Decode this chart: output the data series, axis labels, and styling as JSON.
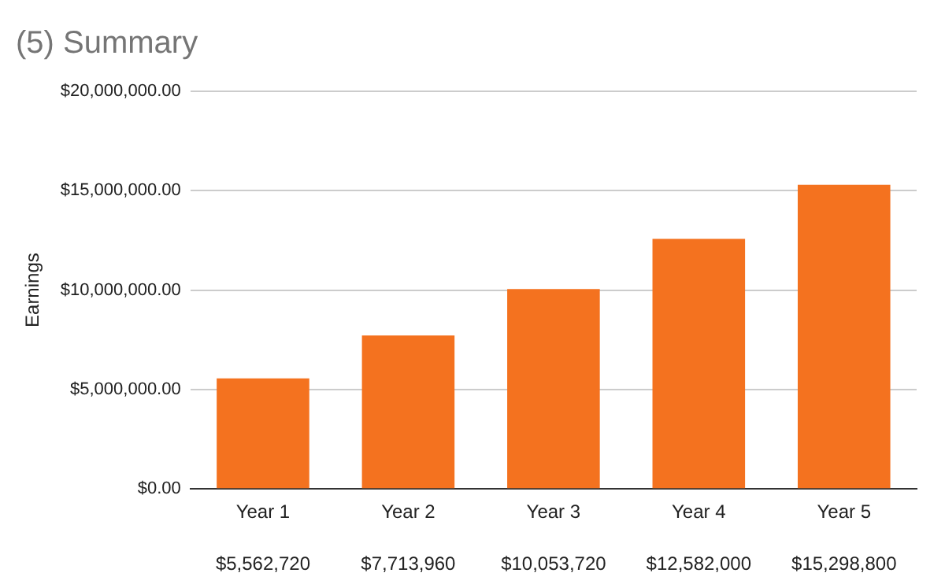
{
  "chart_data": {
    "type": "bar",
    "title": "(5) Summary",
    "ylabel": "Earnings",
    "categories": [
      "Year 1",
      "Year 2",
      "Year 3",
      "Year 4",
      "Year 5"
    ],
    "values": [
      5562720,
      7713960,
      10053720,
      12582000,
      15298800
    ],
    "value_labels": [
      "$5,562,720",
      "$7,713,960",
      "$10,053,720",
      "$12,582,000",
      "$15,298,800"
    ],
    "color": "#f4721f",
    "ylim": [
      0,
      20000000
    ],
    "yticks": [
      {
        "value": 0,
        "label": "$0.00"
      },
      {
        "value": 5000000,
        "label": "$5,000,000.00"
      },
      {
        "value": 10000000,
        "label": "$10,000,000.00"
      },
      {
        "value": 15000000,
        "label": "$15,000,000.00"
      },
      {
        "value": 20000000,
        "label": "$20,000,000.00"
      }
    ],
    "grid": "y",
    "legend": false
  }
}
